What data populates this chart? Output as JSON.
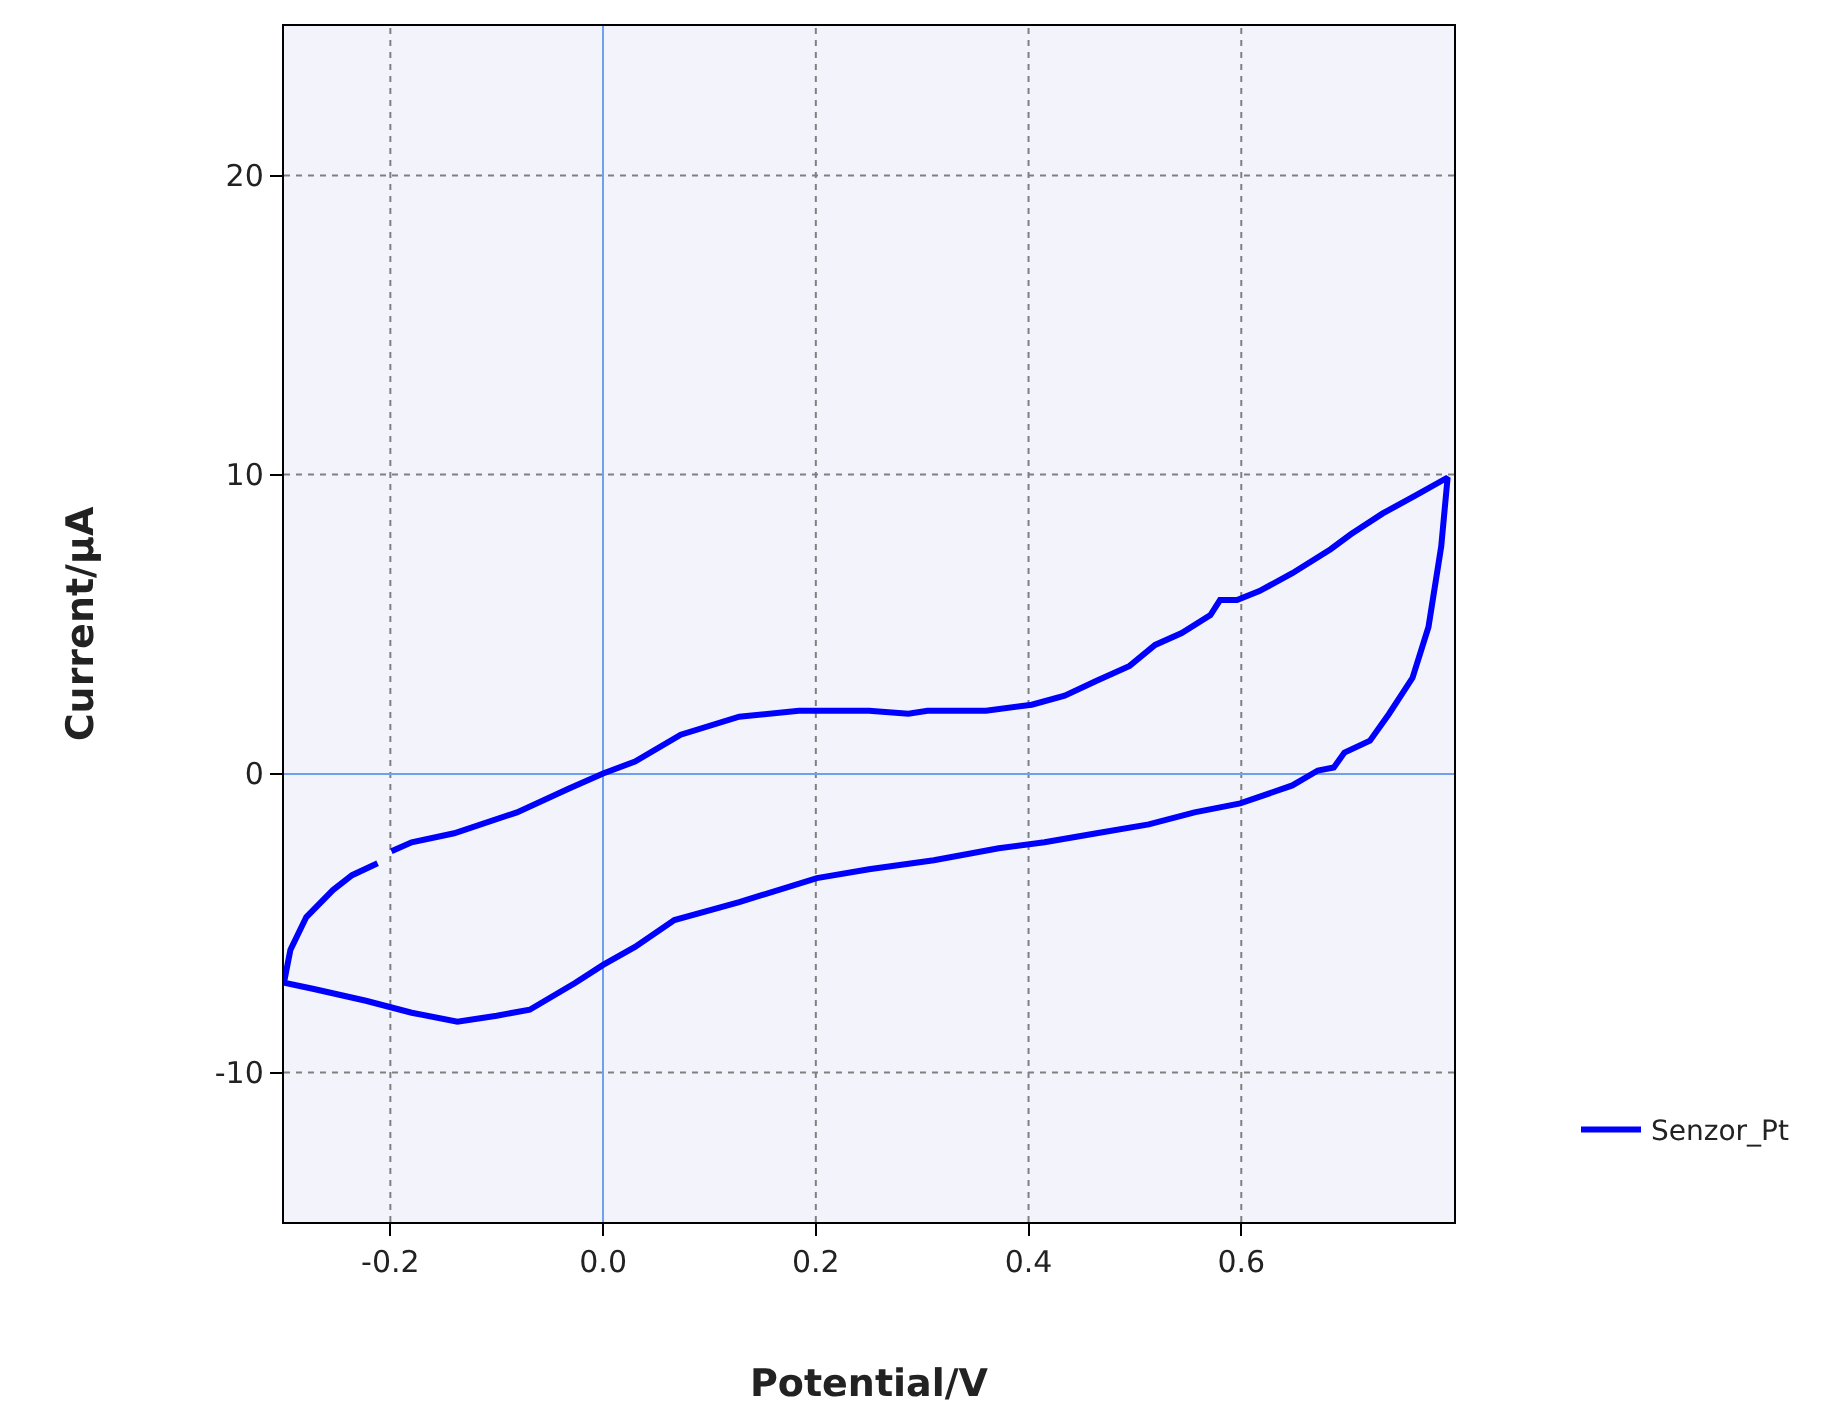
{
  "chart_data": {
    "type": "line",
    "xlabel": "Potential/V",
    "ylabel": "Current/μA",
    "xlim": [
      -0.3,
      0.8
    ],
    "xticks": [
      {
        "value": -0.2,
        "label": "-0.2"
      },
      {
        "value": 0,
        "label": "0.0"
      },
      {
        "value": 0.2,
        "label": "0.2"
      },
      {
        "value": 0.4,
        "label": "0.4"
      },
      {
        "value": 0.6,
        "label": "0.6"
      }
    ],
    "ylim": [
      -15,
      25
    ],
    "yticks": [
      -10,
      0,
      10,
      20
    ],
    "grid": true,
    "legend": "bottom right",
    "line_style": "solid",
    "marker": "none",
    "series": [
      {
        "name": "Senzor_Pt",
        "color": "#0000ff",
        "x": [
          -0.199,
          -0.18,
          -0.14,
          -0.081,
          -0.032,
          0,
          0.03,
          0.073,
          0.128,
          0.184,
          0.25,
          0.287,
          0.305,
          0.36,
          0.403,
          0.434,
          0.464,
          0.495,
          0.519,
          0.544,
          0.571,
          0.58,
          0.596,
          0.617,
          0.648,
          0.684,
          0.703,
          0.733,
          0.764,
          0.794,
          0.788,
          0.776,
          0.761,
          0.739,
          0.721,
          0.697,
          0.687,
          0.672,
          0.648,
          0.599,
          0.556,
          0.513,
          0.464,
          0.415,
          0.372,
          0.311,
          0.25,
          0.201,
          0.128,
          0.067,
          0.03,
          0,
          -0.026,
          -0.069,
          -0.1,
          -0.137,
          -0.18,
          -0.223,
          -0.273,
          -0.3,
          -0.294,
          -0.279,
          -0.254,
          -0.236,
          -0.212
        ],
        "values": [
          -2.6,
          -2.3,
          -2.0,
          -1.3,
          -0.5,
          0,
          0.4,
          1.3,
          1.9,
          2.1,
          2.1,
          2.0,
          2.1,
          2.1,
          2.3,
          2.6,
          3.1,
          3.6,
          4.3,
          4.7,
          5.3,
          5.8,
          5.8,
          6.1,
          6.7,
          7.5,
          8.0,
          8.7,
          9.3,
          9.9,
          7.6,
          4.9,
          3.2,
          2.0,
          1.1,
          0.7,
          0.2,
          0.1,
          -0.4,
          -1.0,
          -1.3,
          -1.7,
          -2.0,
          -2.3,
          -2.5,
          -2.9,
          -3.2,
          -3.5,
          -4.3,
          -4.9,
          -5.8,
          -6.4,
          -7.0,
          -7.9,
          -8.1,
          -8.3,
          -8.0,
          -7.6,
          -7.2,
          -7.0,
          -5.9,
          -4.8,
          -3.9,
          -3.4,
          -3.0
        ]
      }
    ]
  }
}
